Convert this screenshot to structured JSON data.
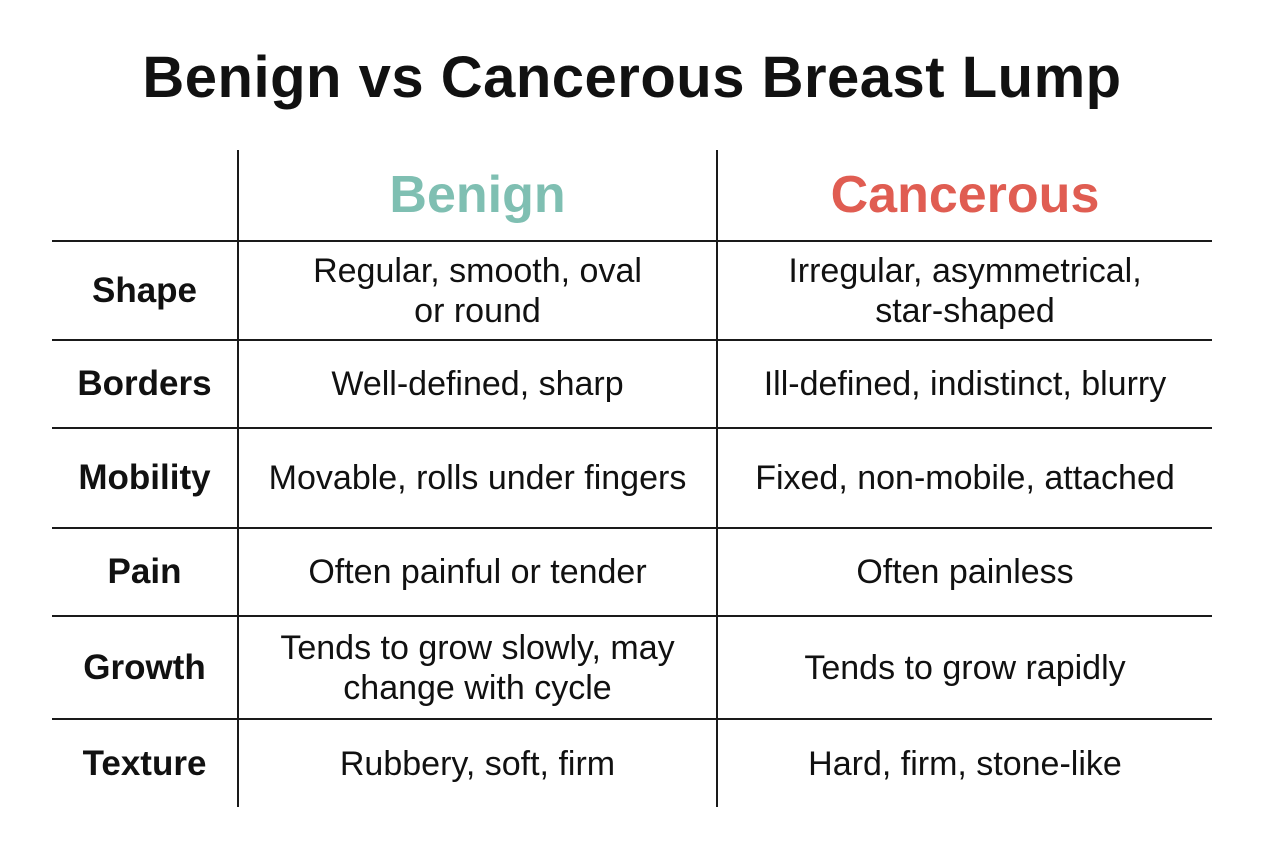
{
  "title": "Benign vs Cancerous Breast Lump",
  "columns": [
    {
      "label": "Benign",
      "color": "#7fbfb2"
    },
    {
      "label": "Cancerous",
      "color": "#e05d52"
    }
  ],
  "rows": [
    {
      "label": "Shape",
      "benign": "Regular, smooth, oval\nor round",
      "cancerous": "Irregular, asymmetrical,\nstar-shaped"
    },
    {
      "label": "Borders",
      "benign": "Well-defined, sharp",
      "cancerous": "Ill-defined, indistinct, blurry"
    },
    {
      "label": "Mobility",
      "benign": "Movable, rolls under fingers",
      "cancerous": "Fixed, non-mobile, attached"
    },
    {
      "label": "Pain",
      "benign": "Often painful or tender",
      "cancerous": "Often painless"
    },
    {
      "label": "Growth",
      "benign": "Tends to grow slowly, may\nchange with cycle",
      "cancerous": "Tends to grow rapidly"
    },
    {
      "label": "Texture",
      "benign": "Rubbery, soft, firm",
      "cancerous": "Hard, firm, stone-like"
    }
  ]
}
